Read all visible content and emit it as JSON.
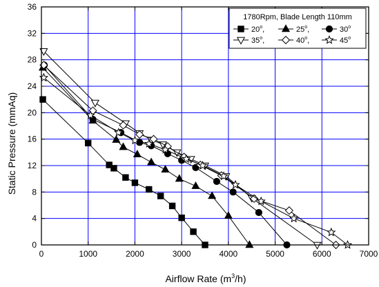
{
  "chart_data": {
    "type": "line",
    "xlabel": "Airflow Rate (m",
    "xlabel_sup": "3",
    "xlabel_tail": "/h)",
    "ylabel": "Static Pressure (mmAq)",
    "xlim": [
      0,
      7000
    ],
    "ylim": [
      0,
      36
    ],
    "xticks": [
      0,
      1000,
      2000,
      3000,
      4000,
      5000,
      6000,
      7000
    ],
    "yticks": [
      0,
      4,
      8,
      12,
      16,
      20,
      24,
      28,
      32,
      36
    ],
    "grid": true,
    "grid_color": "#0000ff",
    "legend": {
      "placement": "top-right",
      "title": "1780Rpm, Blade Length 110mm",
      "degree_symbol": "o"
    },
    "series": [
      {
        "name": "20",
        "marker": "square-filled",
        "x": [
          30,
          1000,
          1450,
          1550,
          1800,
          2000,
          2300,
          2550,
          2800,
          3000,
          3250,
          3500
        ],
        "y": [
          22,
          15.4,
          12.1,
          11.6,
          10.2,
          9.4,
          8.4,
          7.4,
          5.9,
          4.1,
          2.0,
          0
        ]
      },
      {
        "name": "25",
        "marker": "triangle-filled",
        "x": [
          30,
          1100,
          1600,
          1750,
          2050,
          2350,
          2650,
          2950,
          3300,
          3650,
          4000,
          4450
        ],
        "y": [
          26.8,
          18.8,
          15.9,
          14.8,
          13.7,
          12.5,
          11.4,
          10.0,
          8.9,
          7.4,
          4.4,
          0
        ]
      },
      {
        "name": "30",
        "marker": "circle-filled",
        "x": [
          60,
          1100,
          1700,
          2100,
          2350,
          2700,
          3000,
          3300,
          3750,
          4100,
          4650,
          5250
        ],
        "y": [
          27.2,
          19.0,
          17.0,
          15.5,
          15.0,
          13.8,
          12.8,
          11.7,
          9.6,
          8.0,
          4.9,
          0
        ]
      },
      {
        "name": "35",
        "marker": "triangle-down-open",
        "x": [
          50,
          1150,
          1800,
          2100,
          2350,
          2600,
          2900,
          3200,
          3500,
          3950,
          4500,
          5900
        ],
        "y": [
          29.3,
          21.5,
          18.4,
          16.9,
          15.9,
          15.2,
          14.0,
          13.0,
          12.0,
          10.4,
          7.1,
          0
        ]
      },
      {
        "name": "40",
        "marker": "diamond-open",
        "x": [
          50,
          1100,
          1750,
          2100,
          2400,
          2700,
          3050,
          3400,
          3850,
          4550,
          5300,
          6300
        ],
        "y": [
          27.2,
          20.3,
          18.1,
          16.7,
          16.0,
          14.9,
          13.3,
          12.1,
          10.5,
          7.0,
          5.2,
          0
        ]
      },
      {
        "name": "45",
        "marker": "star-open",
        "x": [
          50,
          1050,
          1650,
          2000,
          2300,
          2650,
          3100,
          3450,
          3900,
          4150,
          4700,
          5400,
          6200,
          6550
        ],
        "y": [
          25.3,
          19.6,
          17.0,
          15.8,
          15.3,
          14.4,
          13.0,
          12.0,
          10.4,
          9.1,
          6.6,
          4.0,
          1.9,
          0
        ]
      }
    ]
  }
}
